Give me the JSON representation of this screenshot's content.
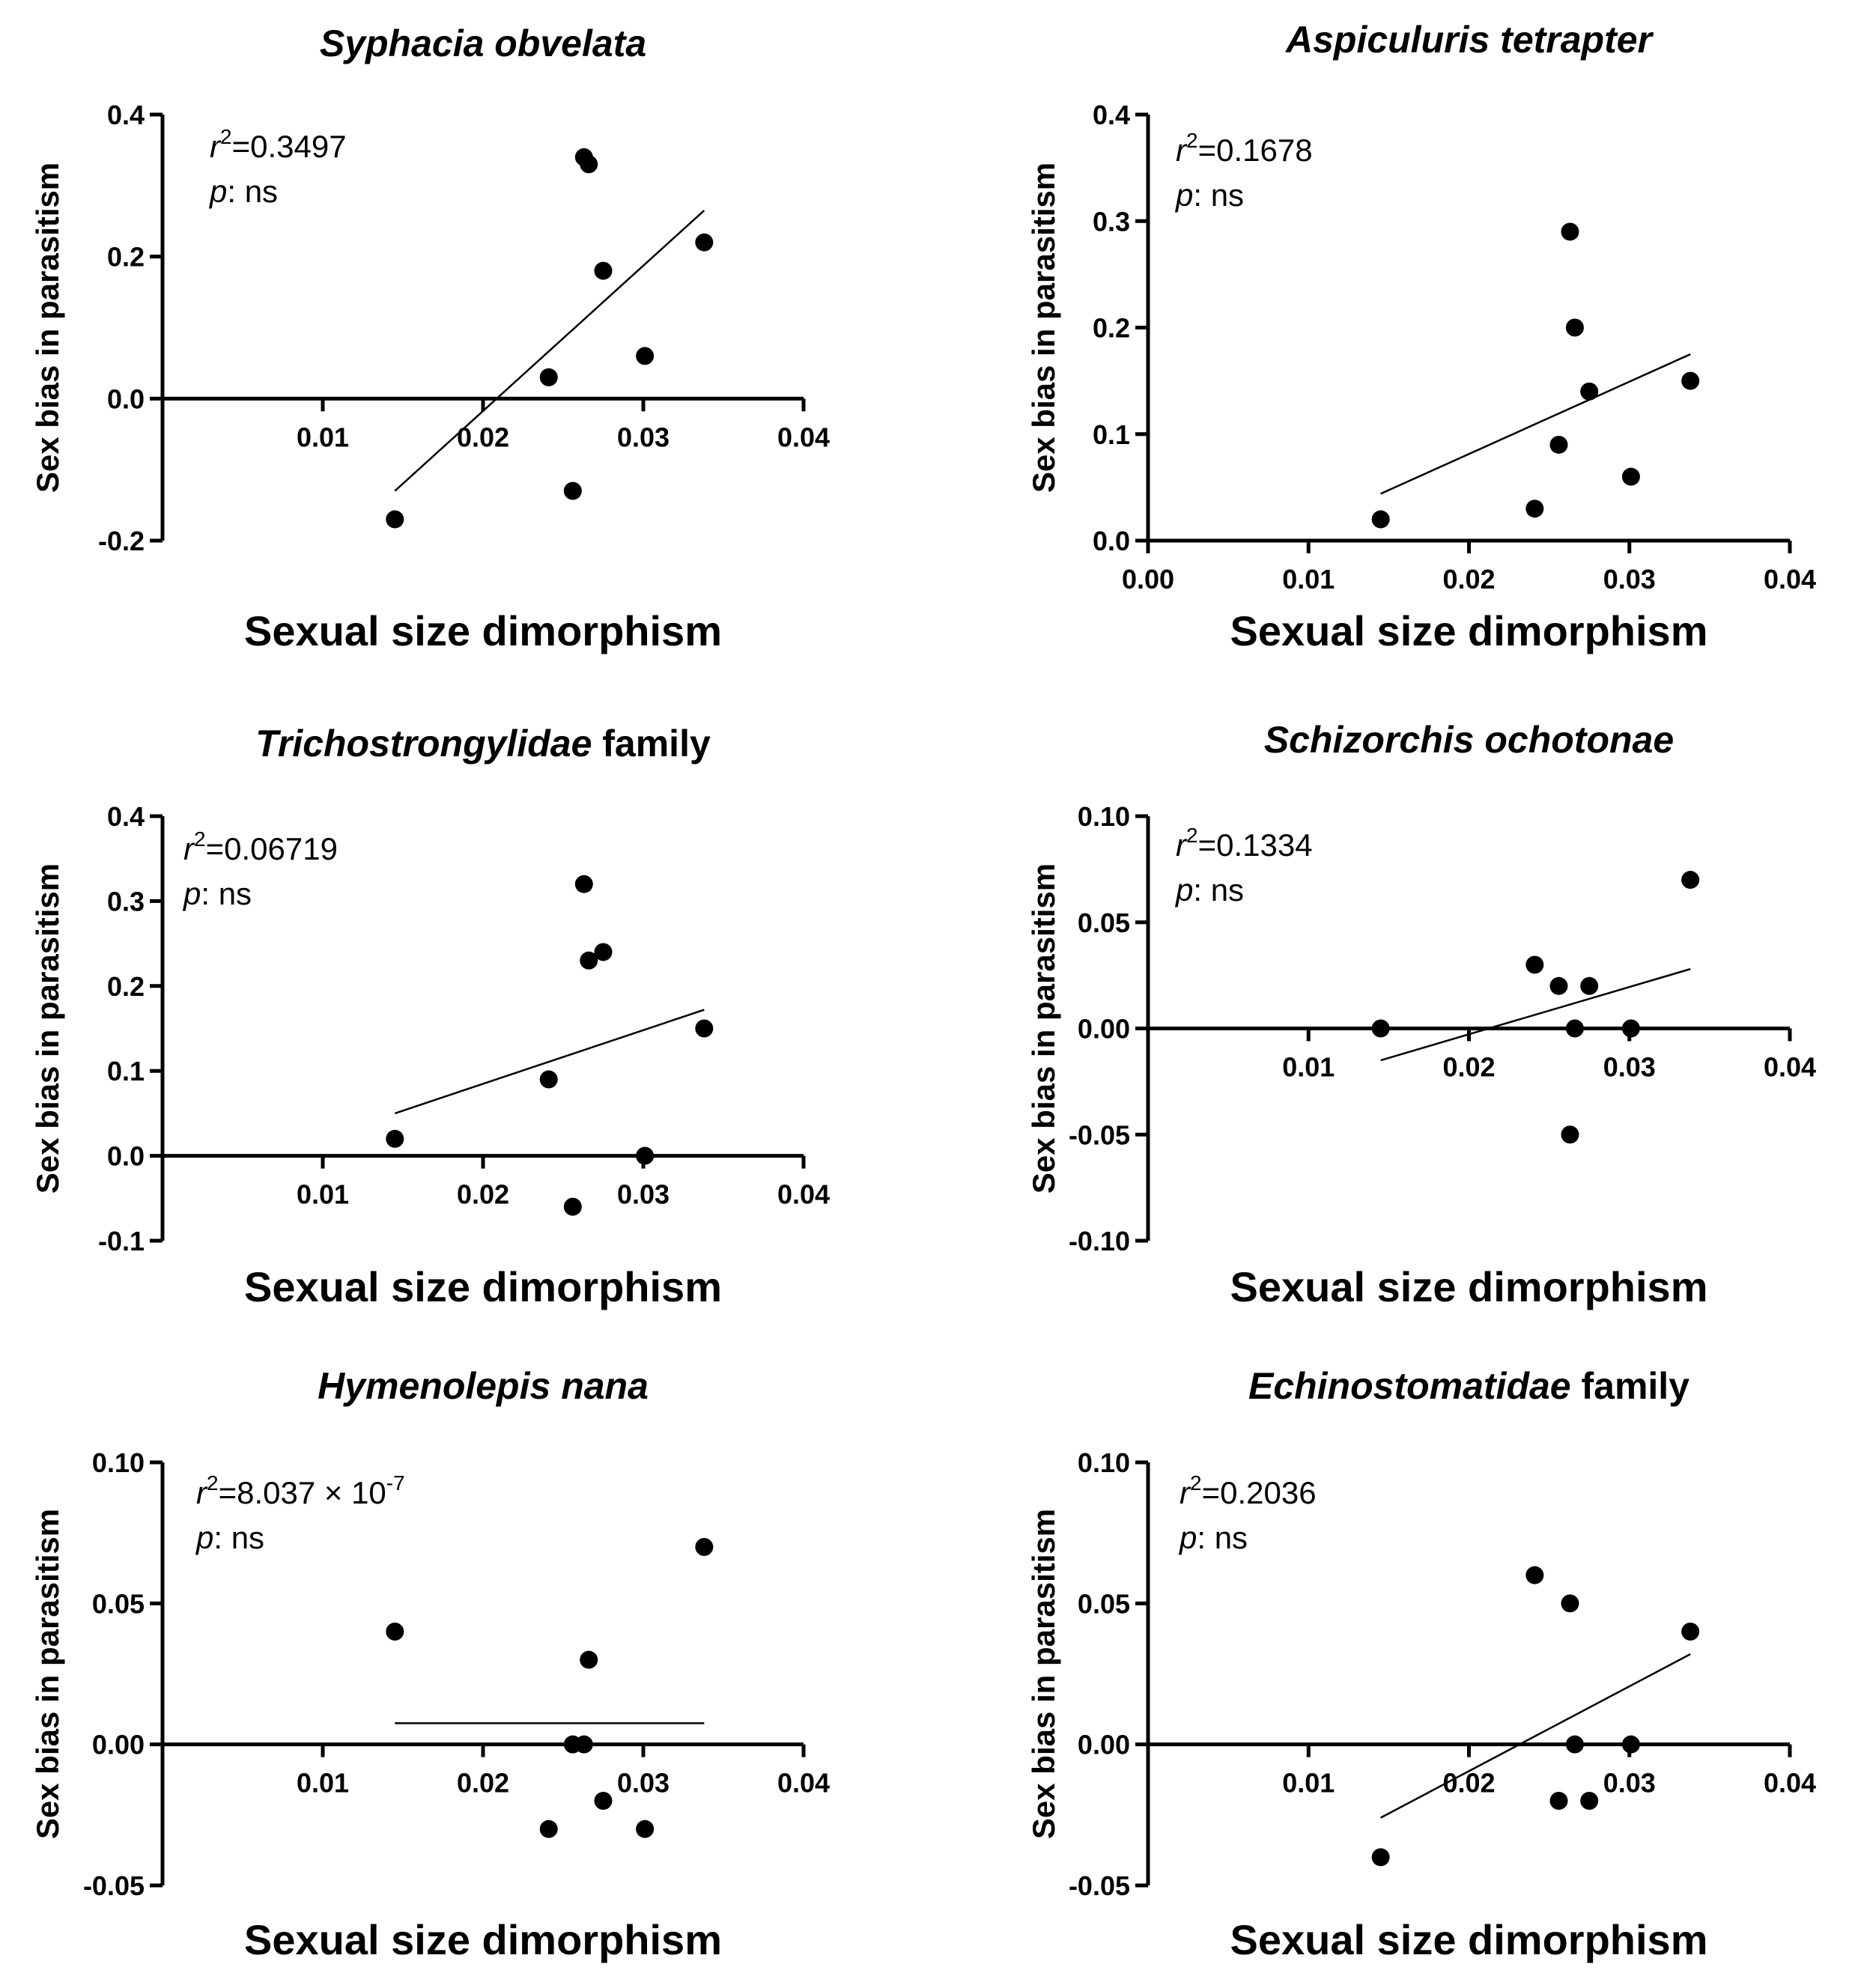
{
  "chart_data": [
    {
      "type": "scatter",
      "title": "Syphacia obvelata",
      "title_italic": "Syphacia obvelata",
      "title_suffix": "",
      "xlabel": "Sexual size dimorphism",
      "ylabel": "Sex bias in parasitism",
      "xlim": [
        0,
        0.04
      ],
      "ylim": [
        -0.2,
        0.4
      ],
      "xticks": [
        "0.01",
        "0.02",
        "0.03",
        "0.04"
      ],
      "yticks": [
        "-0.2",
        "0.0",
        "0.2",
        "0.4"
      ],
      "stats": {
        "r2_label": "r",
        "r2_exp": "2",
        "r2_value": "=0.3497",
        "p_label": "p",
        "p_value": ": ns"
      },
      "x": [
        0.0145,
        0.0241,
        0.0256,
        0.0263,
        0.0266,
        0.0275,
        0.0301,
        0.0338
      ],
      "y": [
        -0.17,
        0.03,
        -0.13,
        0.34,
        0.33,
        0.18,
        0.06,
        0.22
      ],
      "fit": {
        "x": [
          0.0145,
          0.0338
        ],
        "y": [
          -0.13,
          0.265
        ]
      }
    },
    {
      "type": "scatter",
      "title": "Aspiculuris tetrapter",
      "title_italic": "Aspiculuris tetrapter",
      "title_suffix": "",
      "xlabel": "Sexual size dimorphism",
      "ylabel": "Sex bias in parasitism",
      "xlim": [
        0,
        0.04
      ],
      "ylim": [
        0,
        0.4
      ],
      "xticks": [
        "0.00",
        "0.01",
        "0.02",
        "0.03",
        "0.04"
      ],
      "yticks": [
        "0.0",
        "0.1",
        "0.2",
        "0.3",
        "0.4"
      ],
      "stats": {
        "r2_label": "r",
        "r2_exp": "2",
        "r2_value": "=0.1678",
        "p_label": "p",
        "p_value": ": ns"
      },
      "x": [
        0.0145,
        0.0241,
        0.0256,
        0.0263,
        0.0266,
        0.0275,
        0.0301,
        0.0338
      ],
      "y": [
        0.02,
        0.03,
        0.09,
        0.29,
        0.2,
        0.14,
        0.06,
        0.15
      ],
      "fit": {
        "x": [
          0.0145,
          0.0338
        ],
        "y": [
          0.044,
          0.175
        ]
      }
    },
    {
      "type": "scatter",
      "title": "Trichostrongylidae family",
      "title_italic": "Trichostrongylidae",
      "title_suffix": " family",
      "xlabel": "Sexual size dimorphism",
      "ylabel": "Sex bias in parasitism",
      "xlim": [
        0,
        0.04
      ],
      "ylim": [
        -0.1,
        0.4
      ],
      "xticks": [
        "0.01",
        "0.02",
        "0.03",
        "0.04"
      ],
      "yticks": [
        "-0.1",
        "0.0",
        "0.1",
        "0.2",
        "0.3",
        "0.4"
      ],
      "stats": {
        "r2_label": "r",
        "r2_exp": "2",
        "r2_value": "=0.06719",
        "p_label": "p",
        "p_value": ": ns"
      },
      "x": [
        0.0145,
        0.0241,
        0.0256,
        0.0263,
        0.0266,
        0.0275,
        0.0301,
        0.0338
      ],
      "y": [
        0.02,
        0.09,
        -0.06,
        0.32,
        0.23,
        0.24,
        0.0,
        0.15
      ],
      "fit": {
        "x": [
          0.0145,
          0.0338
        ],
        "y": [
          0.05,
          0.172
        ]
      }
    },
    {
      "type": "scatter",
      "title": "Schizorchis ochotonae",
      "title_italic": "Schizorchis ochotonae",
      "title_suffix": "",
      "xlabel": "Sexual size dimorphism",
      "ylabel": "Sex bias in parasitism",
      "xlim": [
        0,
        0.04
      ],
      "ylim": [
        -0.1,
        0.1
      ],
      "xticks": [
        "0.01",
        "0.02",
        "0.03",
        "0.04"
      ],
      "yticks": [
        "-0.10",
        "-0.05",
        "0.00",
        "0.05",
        "0.10"
      ],
      "stats": {
        "r2_label": "r",
        "r2_exp": "2",
        "r2_value": "=0.1334",
        "p_label": "p",
        "p_value": ": ns"
      },
      "x": [
        0.0145,
        0.0241,
        0.0256,
        0.0263,
        0.0266,
        0.0275,
        0.0301,
        0.0338
      ],
      "y": [
        0.0,
        0.03,
        0.02,
        -0.05,
        0.0,
        0.02,
        0.0,
        0.07
      ],
      "fit": {
        "x": [
          0.0145,
          0.0338
        ],
        "y": [
          -0.015,
          0.028
        ]
      }
    },
    {
      "type": "scatter",
      "title": "Hymenolepis nana",
      "title_italic": "Hymenolepis nana",
      "title_suffix": "",
      "xlabel": "Sexual size dimorphism",
      "ylabel": "Sex bias in parasitism",
      "xlim": [
        0,
        0.04
      ],
      "ylim": [
        -0.05,
        0.1
      ],
      "xticks": [
        "0.01",
        "0.02",
        "0.03",
        "0.04"
      ],
      "yticks": [
        "-0.05",
        "0.00",
        "0.05",
        "0.10"
      ],
      "stats": {
        "r2_label": "r",
        "r2_exp": "2",
        "r2_value": "=8.037 × 10",
        "r2_value_exp": "-7",
        "p_label": "p",
        "p_value": ": ns"
      },
      "x": [
        0.0145,
        0.0241,
        0.0256,
        0.0263,
        0.0266,
        0.0275,
        0.0301,
        0.0338
      ],
      "y": [
        0.04,
        -0.03,
        0.0,
        0.0,
        0.03,
        -0.02,
        -0.03,
        0.07
      ],
      "fit": {
        "x": [
          0.0145,
          0.0338
        ],
        "y": [
          0.0075,
          0.0075
        ]
      }
    },
    {
      "type": "scatter",
      "title": "Echinostomatidae family",
      "title_italic": "Echinostomatidae",
      "title_suffix": " family",
      "xlabel": "Sexual size dimorphism",
      "ylabel": "Sex bias in parasitism",
      "xlim": [
        0,
        0.04
      ],
      "ylim": [
        -0.05,
        0.1
      ],
      "xticks": [
        "0.01",
        "0.02",
        "0.03",
        "0.04"
      ],
      "yticks": [
        "-0.05",
        "0.00",
        "0.05",
        "0.10"
      ],
      "stats": {
        "r2_label": "r",
        "r2_exp": "2",
        "r2_value": "=0.2036",
        "p_label": "p",
        "p_value": ": ns"
      },
      "x": [
        0.0145,
        0.0241,
        0.0256,
        0.0263,
        0.0266,
        0.0275,
        0.0301,
        0.0338
      ],
      "y": [
        -0.04,
        0.06,
        -0.02,
        0.05,
        0.0,
        -0.02,
        0.0,
        0.04
      ],
      "fit": {
        "x": [
          0.0145,
          0.0338
        ],
        "y": [
          -0.026,
          0.032
        ]
      }
    }
  ]
}
